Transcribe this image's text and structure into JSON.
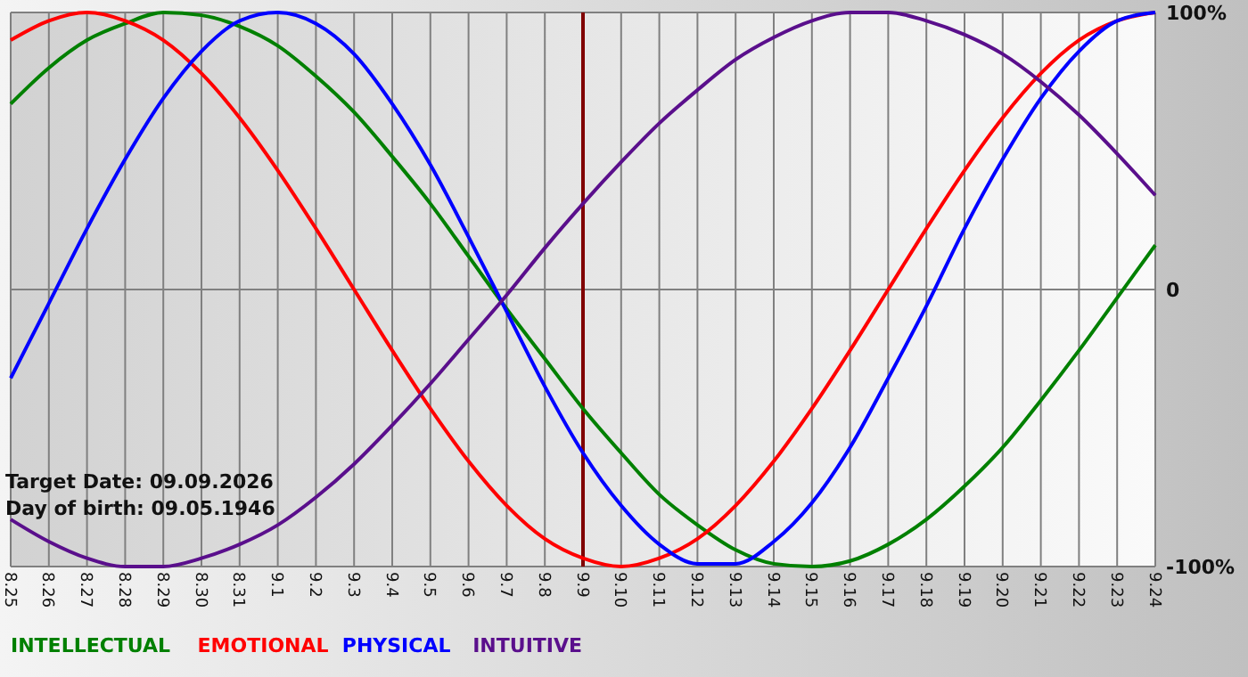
{
  "chart_data": {
    "type": "line",
    "categories": [
      "8.25",
      "8.26",
      "8.27",
      "8.28",
      "8.29",
      "8.30",
      "8.31",
      "9.1",
      "9.2",
      "9.3",
      "9.4",
      "9.5",
      "9.6",
      "9.7",
      "9.8",
      "9.9",
      "9.10",
      "9.11",
      "9.12",
      "9.13",
      "9.14",
      "9.15",
      "9.16",
      "9.17",
      "9.18",
      "9.19",
      "9.20",
      "9.21",
      "9.22",
      "9.23",
      "9.24"
    ],
    "series": [
      {
        "name": "INTELLECTUAL",
        "color": "#008000",
        "values": [
          67,
          80,
          90,
          96,
          100,
          99,
          95,
          88,
          77,
          64,
          48,
          31,
          12,
          -7,
          -25,
          -43,
          -59,
          -74,
          -85,
          -94,
          -99,
          -100,
          -98,
          -92,
          -83,
          -71,
          -57,
          -40,
          -22,
          -3,
          16
        ]
      },
      {
        "name": "EMOTIONAL",
        "color": "#ff0000",
        "values": [
          90,
          97,
          100,
          97,
          90,
          78,
          62,
          43,
          22,
          0,
          -22,
          -43,
          -62,
          -78,
          -90,
          -97,
          -100,
          -97,
          -90,
          -78,
          -62,
          -43,
          -22,
          0,
          22,
          43,
          62,
          78,
          90,
          97,
          100
        ]
      },
      {
        "name": "PHYSICAL",
        "color": "#0000ff",
        "values": [
          -32,
          -5,
          22,
          47,
          69,
          86,
          97,
          100,
          96,
          85,
          67,
          45,
          19,
          -8,
          -35,
          -59,
          -78,
          -92,
          -99,
          -99,
          -91,
          -77,
          -57,
          -32,
          -6,
          22,
          47,
          69,
          86,
          97,
          100
        ]
      },
      {
        "name": "INTUITIVE",
        "color": "#5a0f8c",
        "values": [
          -83,
          -91,
          -97,
          -100,
          -100,
          -97,
          -92,
          -85,
          -75,
          -63,
          -49,
          -34,
          -18,
          -2,
          15,
          31,
          46,
          60,
          72,
          83,
          91,
          97,
          100,
          100,
          97,
          92,
          85,
          75,
          63,
          49,
          34
        ]
      }
    ],
    "ylim": [
      -100,
      100
    ],
    "yticks": [
      {
        "value": -100,
        "label": "-100%"
      },
      0,
      {
        "value": 100,
        "label": "100%"
      }
    ],
    "grid": true,
    "legend": "bottom left",
    "marker": "none",
    "line_style": "solid",
    "ref_lines": [
      {
        "axis": "x",
        "value": "9.9",
        "label": null,
        "color": "#800000"
      }
    ],
    "annotations": [
      "Target Date: 09.09.2026",
      "Day of birth: 09.05.1946"
    ]
  }
}
